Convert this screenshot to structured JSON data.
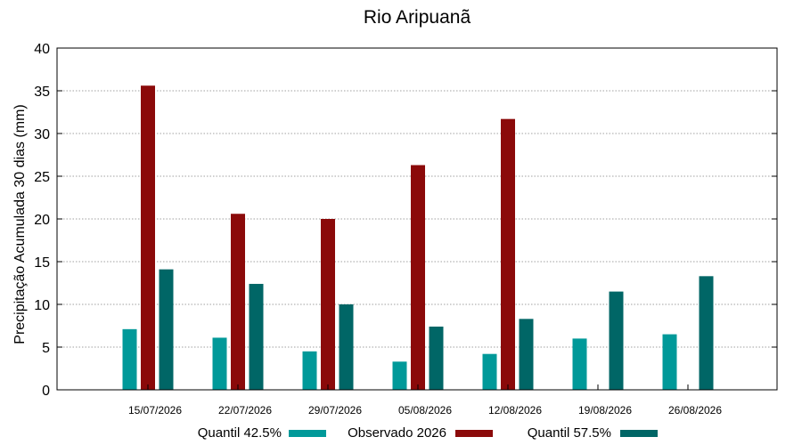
{
  "chart_data": {
    "type": "bar",
    "title": "Rio Aripuanã",
    "xlabel": "",
    "ylabel": "Precipitação Acumulada 30 dias (mm)",
    "ylim": [
      0,
      40
    ],
    "yticks": [
      0,
      5,
      10,
      15,
      20,
      25,
      30,
      35,
      40
    ],
    "grid": true,
    "legend_position": "bottom",
    "categories": [
      "15/07/2026",
      "22/07/2026",
      "29/07/2026",
      "05/08/2026",
      "12/08/2026",
      "19/08/2026",
      "26/08/2026"
    ],
    "series": [
      {
        "name": "Quantil 42.5%",
        "color": "#009999",
        "values": [
          7.1,
          6.1,
          4.5,
          3.3,
          4.2,
          6.0,
          6.5
        ]
      },
      {
        "name": "Observado 2026",
        "color": "#8b0a0a",
        "values": [
          35.6,
          20.6,
          20.0,
          26.3,
          31.7,
          null,
          null
        ]
      },
      {
        "name": "Quantil 57.5%",
        "color": "#006666",
        "values": [
          14.1,
          12.4,
          10.0,
          7.4,
          8.3,
          11.5,
          13.3
        ]
      }
    ]
  }
}
